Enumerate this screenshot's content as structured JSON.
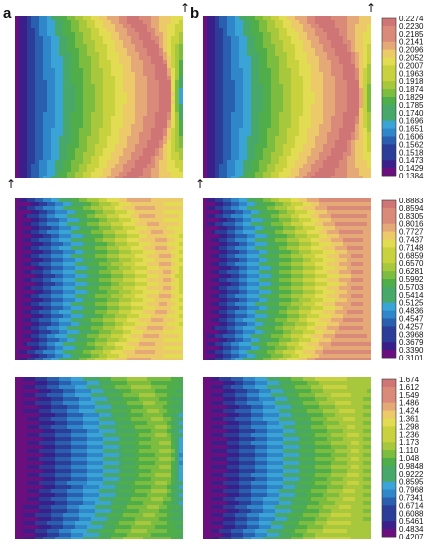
{
  "panel_labels": {
    "a": "a",
    "b": "b"
  },
  "arrow_glyph": "↑",
  "colors": {
    "palette": [
      "#6a0f7d",
      "#3a1f8a",
      "#2b3d96",
      "#2a5fb0",
      "#2f86c9",
      "#3aa4d7",
      "#47a86a",
      "#4fae4a",
      "#7cbd40",
      "#a7c83c",
      "#c8d23e",
      "#e1dc52",
      "#ecc969",
      "#e5a977",
      "#d98a78",
      "#cf7575"
    ],
    "background": "#ffffff"
  },
  "chart_data": [
    {
      "type": "heatmap",
      "row": 1,
      "colorbar": {
        "ticks": [
          "0.2274",
          "0.2230",
          "0.2185",
          "0.2141",
          "0.2096",
          "0.2052",
          "0.2007",
          "0.1963",
          "0.1918",
          "0.1874",
          "0.1829",
          "0.1785",
          "0.1740",
          "0.1696",
          "0.1651",
          "0.1606",
          "0.1562",
          "0.1518",
          "0.1473",
          "0.1429",
          "0.1384"
        ],
        "min": 0.1384,
        "max": 0.2274
      },
      "panels": [
        {
          "id": "a",
          "pattern": "smooth",
          "left_value": 0.1384,
          "peak_value": 0.2274,
          "center_value": 0.1606
        },
        {
          "id": "b",
          "pattern": "smooth",
          "left_value": 0.1384,
          "peak_value": 0.2274,
          "center_value": 0.1785
        }
      ]
    },
    {
      "type": "heatmap",
      "row": 2,
      "colorbar": {
        "ticks": [
          "0.8883",
          "0.8594",
          "0.8305",
          "0.8016",
          "0.7727",
          "0.7437",
          "0.7148",
          "0.6859",
          "0.6570",
          "0.6281",
          "0.5992",
          "0.5703",
          "0.5414",
          "0.5125",
          "0.4836",
          "0.4547",
          "0.4257",
          "0.3968",
          "0.3679",
          "0.3390",
          "0.3101"
        ],
        "min": 0.3101,
        "max": 0.8883
      },
      "panels": [
        {
          "id": "a",
          "pattern": "striated",
          "left_value": 0.3101,
          "peak_value": 0.8016,
          "center_value": 0.6859
        },
        {
          "id": "b",
          "pattern": "striated",
          "left_value": 0.3101,
          "peak_value": 0.8305,
          "center_value": 0.8016
        }
      ]
    },
    {
      "type": "heatmap",
      "row": 3,
      "colorbar": {
        "ticks": [
          "1.674",
          "1.612",
          "1.549",
          "1.486",
          "1.424",
          "1.361",
          "1.298",
          "1.236",
          "1.173",
          "1.110",
          "1.048",
          "0.9848",
          "0.9222",
          "0.8595",
          "0.7968",
          "0.7341",
          "0.6714",
          "0.6088",
          "0.5461",
          "0.4834",
          "0.4207"
        ],
        "min": 0.4207,
        "max": 1.674
      },
      "panels": [
        {
          "id": "a",
          "pattern": "striated",
          "left_value": 0.4207,
          "peak_value": 1.173,
          "center_value": 0.7968
        },
        {
          "id": "b",
          "pattern": "striated",
          "left_value": 0.4207,
          "peak_value": 1.236,
          "center_value": 1.11
        }
      ]
    }
  ]
}
